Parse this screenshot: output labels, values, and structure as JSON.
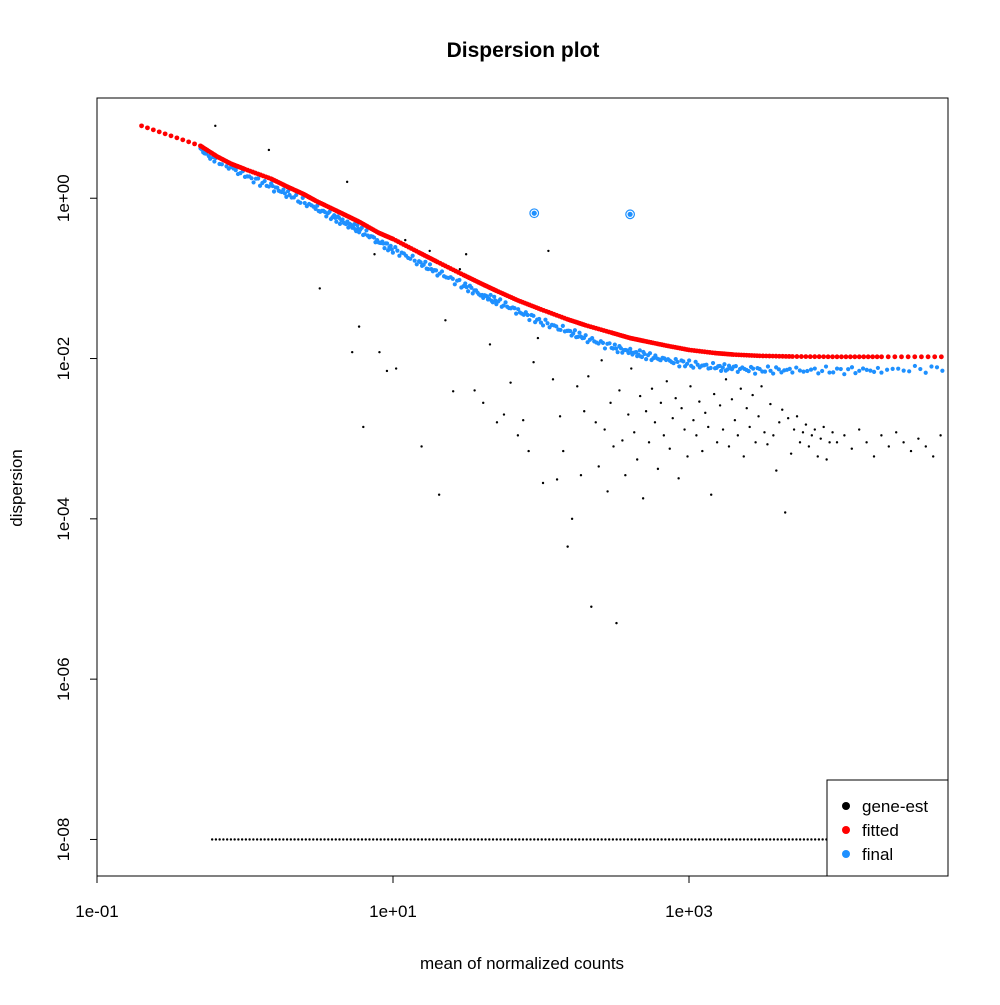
{
  "chart_data": {
    "type": "scatter",
    "title": "Dispersion plot",
    "xlabel": "mean of normalized counts",
    "ylabel": "dispersion",
    "x_scale": "log10",
    "y_scale": "log10",
    "xlim": [
      0.1,
      56234
    ],
    "ylim": [
      3.5e-09,
      17.8
    ],
    "x_ticks": [
      {
        "value": 0.1,
        "label": "1e-01"
      },
      {
        "value": 10,
        "label": "1e+01"
      },
      {
        "value": 1000,
        "label": "1e+03"
      }
    ],
    "y_ticks": [
      {
        "value": 1e-08,
        "label": "1e-08"
      },
      {
        "value": 1e-06,
        "label": "1e-06"
      },
      {
        "value": 0.0001,
        "label": "1e-04"
      },
      {
        "value": 0.01,
        "label": "1e-02"
      },
      {
        "value": 1,
        "label": "1e+00"
      }
    ],
    "grid": false,
    "legend_position": "bottom-right",
    "colors": {
      "gene-est": "#000000",
      "fitted": "#ff0000",
      "final": "#1e90ff"
    },
    "series": [
      {
        "name": "gene-est",
        "description_points": "individual gene estimates",
        "points": [
          [
            0.2,
            8.0
          ],
          [
            0.63,
            8.0
          ],
          [
            1.45,
            4.0
          ],
          [
            3.2,
            0.075
          ],
          [
            4.9,
            1.6
          ],
          [
            5.3,
            0.012
          ],
          [
            5.9,
            0.025
          ],
          [
            6.3,
            0.0014
          ],
          [
            7.5,
            0.2
          ],
          [
            8.1,
            0.012
          ],
          [
            9.1,
            0.007
          ],
          [
            10.5,
            0.0075
          ],
          [
            12.1,
            0.3
          ],
          [
            15.6,
            0.0008
          ],
          [
            17.7,
            0.22
          ],
          [
            20.5,
            0.0002
          ],
          [
            22.6,
            0.03
          ],
          [
            25.5,
            0.0039
          ],
          [
            28.3,
            0.13
          ],
          [
            31.2,
            0.2
          ],
          [
            35.6,
            0.004
          ],
          [
            40.7,
            0.0028
          ],
          [
            45.2,
            0.015
          ],
          [
            50.4,
            0.0016
          ],
          [
            56.2,
            0.002
          ],
          [
            62.3,
            0.005
          ],
          [
            69.8,
            0.0011
          ],
          [
            75.8,
            0.0017
          ],
          [
            82.5,
            0.0007
          ],
          [
            89.1,
            0.009
          ],
          [
            95.3,
            0.018
          ],
          [
            103.2,
            0.00028
          ],
          [
            112.2,
            0.22
          ],
          [
            120.5,
            0.0055
          ],
          [
            128.4,
            0.00031
          ],
          [
            134.5,
            0.0019
          ],
          [
            141.3,
            0.0007
          ],
          [
            151.4,
            4.5e-05
          ],
          [
            162.2,
            0.0001
          ],
          [
            175.8,
            0.0045
          ],
          [
            186.2,
            0.00035
          ],
          [
            195.9,
            0.0022
          ],
          [
            208.9,
            0.006
          ],
          [
            218.8,
            8e-06
          ],
          [
            234.4,
            0.0016
          ],
          [
            245.5,
            0.00045
          ],
          [
            257.0,
            0.0095
          ],
          [
            269.2,
            0.0013
          ],
          [
            281.8,
            0.00022
          ],
          [
            295.1,
            0.0028
          ],
          [
            309.0,
            0.0008
          ],
          [
            323.6,
            5e-06
          ],
          [
            338.8,
            0.004
          ],
          [
            354.8,
            0.00095
          ],
          [
            371.5,
            0.00035
          ],
          [
            389.0,
            0.002
          ],
          [
            407.4,
            0.0075
          ],
          [
            426.6,
            0.0012
          ],
          [
            446.7,
            0.00055
          ],
          [
            467.7,
            0.0034
          ],
          [
            489.8,
            0.00018
          ],
          [
            512.9,
            0.0022
          ],
          [
            537.0,
            0.0009
          ],
          [
            562.3,
            0.0042
          ],
          [
            588.8,
            0.0016
          ],
          [
            616.6,
            0.00042
          ],
          [
            645.7,
            0.0028
          ],
          [
            676.1,
            0.0011
          ],
          [
            707.9,
            0.0052
          ],
          [
            741.3,
            0.00075
          ],
          [
            776.2,
            0.0018
          ],
          [
            812.8,
            0.0032
          ],
          [
            851.1,
            0.00032
          ],
          [
            891.3,
            0.0024
          ],
          [
            933.3,
            0.0013
          ],
          [
            977.2,
            0.0006
          ],
          [
            1023.3,
            0.0045
          ],
          [
            1071.5,
            0.0017
          ],
          [
            1122.0,
            0.0011
          ],
          [
            1174.9,
            0.0029
          ],
          [
            1230.3,
            0.0007
          ],
          [
            1288.2,
            0.0021
          ],
          [
            1349.0,
            0.0014
          ],
          [
            1412.5,
            0.0002
          ],
          [
            1479.1,
            0.0036
          ],
          [
            1548.8,
            0.0009
          ],
          [
            1621.8,
            0.0026
          ],
          [
            1698.2,
            0.0013
          ],
          [
            1778.3,
            0.0055
          ],
          [
            1862.1,
            0.0008
          ],
          [
            1949.8,
            0.0031
          ],
          [
            2041.7,
            0.0017
          ],
          [
            2138.0,
            0.0011
          ],
          [
            2238.7,
            0.0042
          ],
          [
            2344.2,
            0.0006
          ],
          [
            2454.7,
            0.0024
          ],
          [
            2570.4,
            0.0014
          ],
          [
            2691.5,
            0.0035
          ],
          [
            2818.4,
            0.0009
          ],
          [
            2951.2,
            0.0019
          ],
          [
            3090.3,
            0.0045
          ],
          [
            3235.9,
            0.0012
          ],
          [
            3388.4,
            0.00085
          ],
          [
            3548.1,
            0.0027
          ],
          [
            3715.4,
            0.0011
          ],
          [
            3890.5,
            0.0004
          ],
          [
            4073.8,
            0.0016
          ],
          [
            4265.8,
            0.0023
          ],
          [
            4466.8,
            0.00012
          ],
          [
            4677.4,
            0.0018
          ],
          [
            4897.8,
            0.00065
          ],
          [
            5128.6,
            0.0013
          ],
          [
            5370.3,
            0.0019
          ],
          [
            5623.4,
            0.0009
          ],
          [
            5888.4,
            0.0012
          ],
          [
            6165.9,
            0.0015
          ],
          [
            6456.5,
            0.0008
          ],
          [
            6760.8,
            0.0011
          ],
          [
            7079.5,
            0.0013
          ],
          [
            7413.1,
            0.0006
          ],
          [
            7762.5,
            0.001
          ],
          [
            8128.3,
            0.0014
          ],
          [
            8511.4,
            0.00055
          ],
          [
            8912.5,
            0.0009
          ],
          [
            9332.5,
            0.0012
          ],
          [
            10000.0,
            0.0009
          ],
          [
            11220.2,
            0.0011
          ],
          [
            12589.3,
            0.00075
          ],
          [
            14125.4,
            0.0013
          ],
          [
            15848.9,
            0.0009
          ],
          [
            17782.8,
            0.0006
          ],
          [
            19952.6,
            0.0011
          ],
          [
            22387.2,
            0.0008
          ],
          [
            25118.9,
            0.0012
          ],
          [
            28183.8,
            0.0009
          ],
          [
            31622.8,
            0.0007
          ],
          [
            35481.3,
            0.001
          ],
          [
            39810.7,
            0.0008
          ],
          [
            44668.4,
            0.0006
          ],
          [
            50118.7,
            0.0011
          ],
          [
            56234.1,
            0.0009
          ]
        ]
      },
      {
        "name": "fitted",
        "curve": [
          [
            0.2,
            8.0
          ],
          [
            0.5,
            4.5
          ],
          [
            0.65,
            3.3
          ],
          [
            0.8,
            2.7
          ],
          [
            1.0,
            2.3
          ],
          [
            1.5,
            1.75
          ],
          [
            2.0,
            1.35
          ],
          [
            2.5,
            1.12
          ],
          [
            3.0,
            0.93
          ],
          [
            4.0,
            0.72
          ],
          [
            5.0,
            0.59
          ],
          [
            6.0,
            0.5
          ],
          [
            8.0,
            0.37
          ],
          [
            10.0,
            0.31
          ],
          [
            15.0,
            0.21
          ],
          [
            20.0,
            0.16
          ],
          [
            30.0,
            0.11
          ],
          [
            40.0,
            0.085
          ],
          [
            50.0,
            0.07
          ],
          [
            70.0,
            0.053
          ],
          [
            100.0,
            0.041
          ],
          [
            150.0,
            0.031
          ],
          [
            200.0,
            0.026
          ],
          [
            300.0,
            0.021
          ],
          [
            400.0,
            0.018
          ],
          [
            500.0,
            0.0165
          ],
          [
            700.0,
            0.0145
          ],
          [
            1000.0,
            0.0128
          ],
          [
            1500.0,
            0.0117
          ],
          [
            2000.0,
            0.0112
          ],
          [
            3000.0,
            0.0108
          ],
          [
            5000.0,
            0.0106
          ],
          [
            10000.0,
            0.0105
          ],
          [
            20000.0,
            0.0105
          ],
          [
            56234.1,
            0.0105
          ]
        ]
      },
      {
        "name": "final",
        "cloud": [
          [
            0.5,
            4.0
          ],
          [
            0.65,
            3.0
          ],
          [
            1.0,
            1.9
          ],
          [
            1.5,
            1.4
          ],
          [
            2.0,
            1.1
          ],
          [
            3.0,
            0.75
          ],
          [
            4.0,
            0.58
          ],
          [
            5.0,
            0.47
          ],
          [
            6.0,
            0.4
          ],
          [
            8.0,
            0.29
          ],
          [
            10.0,
            0.23
          ],
          [
            15.0,
            0.16
          ],
          [
            20.0,
            0.12
          ],
          [
            30.0,
            0.082
          ],
          [
            40.0,
            0.062
          ],
          [
            50.0,
            0.052
          ],
          [
            70.0,
            0.039
          ],
          [
            100.0,
            0.029
          ],
          [
            150.0,
            0.022
          ],
          [
            200.0,
            0.018
          ],
          [
            300.0,
            0.014
          ],
          [
            400.0,
            0.012
          ],
          [
            500.0,
            0.011
          ],
          [
            700.0,
            0.0095
          ],
          [
            1000.0,
            0.0085
          ],
          [
            1500.0,
            0.0078
          ],
          [
            2000.0,
            0.0075
          ],
          [
            3000.0,
            0.0072
          ],
          [
            5000.0,
            0.0071
          ],
          [
            10000.0,
            0.0071
          ],
          [
            20000.0,
            0.0072
          ],
          [
            56234.1,
            0.0075
          ]
        ]
      }
    ],
    "legend": [
      {
        "label": "gene-est",
        "color": "#000000"
      },
      {
        "label": "fitted",
        "color": "#ff0000"
      },
      {
        "label": "final",
        "color": "#1e90ff"
      }
    ]
  }
}
